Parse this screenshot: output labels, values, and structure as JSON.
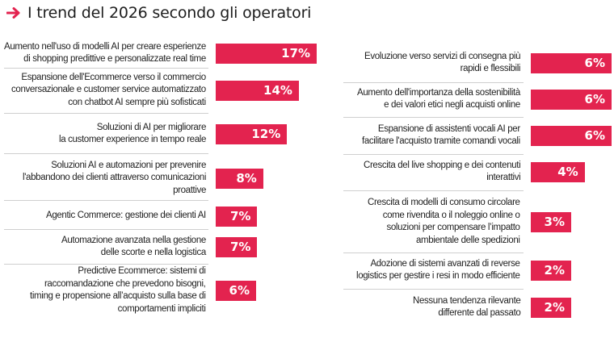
{
  "header": {
    "icon": "arrow-right-icon",
    "title": "I trend del 2026 secondo gli operatori",
    "accent_color": "#e3234f"
  },
  "chart_data": {
    "type": "bar",
    "orientation": "horizontal",
    "title": "I trend del 2026 secondo gli operatori",
    "unit": "%",
    "bar_color": "#e3234f",
    "xlim": [
      0,
      17
    ],
    "columns": [
      {
        "items": [
          {
            "label": "Aumento nell'uso di modelli AI per creare esperienze\ndi shopping predittive e personalizzate real time",
            "value": 17,
            "value_label": "17%"
          },
          {
            "label": "Espansione dell'Ecommerce verso il commercio\nconversazionale e customer service automatizzato\ncon chatbot AI sempre più sofisticati",
            "value": 14,
            "value_label": "14%"
          },
          {
            "label": "Soluzioni di AI per migliorare\nla customer experience in tempo reale",
            "value": 12,
            "value_label": "12%"
          },
          {
            "label": "Soluzioni AI e automazioni per prevenire\nl'abbandono dei clienti attraverso comunicazioni\nproattive",
            "value": 8,
            "value_label": "8%"
          },
          {
            "label": "Agentic Commerce: gestione dei clienti AI",
            "value": 7,
            "value_label": "7%"
          },
          {
            "label": "Automazione avanzata nella gestione\ndelle scorte e nella logistica",
            "value": 7,
            "value_label": "7%"
          },
          {
            "label": "Predictive Ecommerce: sistemi di\nraccomandazione che prevedono bisogni,\ntiming e propensione all’acquisto sulla base di\ncomportamenti impliciti",
            "value": 6,
            "value_label": "6%"
          }
        ]
      },
      {
        "items": [
          {
            "label": "Evoluzione verso servizi di consegna più\nrapidi e flessibili",
            "value": 6,
            "value_label": "6%"
          },
          {
            "label": "Aumento dell'importanza della sostenibilità\ne dei valori etici negli acquisti online",
            "value": 6,
            "value_label": "6%"
          },
          {
            "label": "Espansione di assistenti vocali AI per\nfacilitare l'acquisto tramite comandi vocali",
            "value": 6,
            "value_label": "6%"
          },
          {
            "label": "Crescita del live shopping e dei contenuti\ninterattivi",
            "value": 4,
            "value_label": "4%"
          },
          {
            "label": "Crescita di modelli di consumo circolare\ncome rivendita o il noleggio online o\nsoluzioni per compensare l’impatto\nambientale delle spedizioni",
            "value": 3,
            "value_label": "3%"
          },
          {
            "label": "Adozione di sistemi avanzati di reverse\nlogistics per gestire i resi in modo efficiente",
            "value": 2,
            "value_label": "2%"
          },
          {
            "label": "Nessuna tendenza rilevante\ndifferente dal passato",
            "value": 2,
            "value_label": "2%"
          }
        ]
      }
    ]
  }
}
